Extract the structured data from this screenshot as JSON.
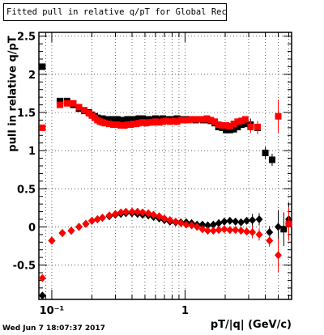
{
  "chart_data": {
    "type": "scatter",
    "title": "Fitted pull in relative q/pT for Global Rec All EtapT",
    "xlabel": "pT/|q| (GeV/c)",
    "ylabel": "pull in relative q/pT",
    "x_scale": "log",
    "xlim": [
      0.08,
      6.3
    ],
    "ylim": [
      -0.95,
      2.55
    ],
    "grid": true,
    "x_ticks": [
      {
        "value": 0.1,
        "label": "10⁻¹"
      },
      {
        "value": 1,
        "label": "1"
      }
    ],
    "y_ticks": [
      {
        "value": -0.5,
        "label": "-0.5"
      },
      {
        "value": 0,
        "label": "0"
      },
      {
        "value": 0.5,
        "label": "0.5"
      },
      {
        "value": 1,
        "label": "1"
      },
      {
        "value": 1.5,
        "label": "1.5"
      },
      {
        "value": 2,
        "label": "2"
      },
      {
        "value": 2.5,
        "label": "2.5"
      }
    ],
    "series": [
      {
        "color": "#000000",
        "marker": "square",
        "x": [
          0.085,
          0.115,
          0.13,
          0.145,
          0.16,
          0.175,
          0.19,
          0.2,
          0.21,
          0.22,
          0.23,
          0.24,
          0.25,
          0.27,
          0.29,
          0.31,
          0.33,
          0.35,
          0.37,
          0.39,
          0.41,
          0.43,
          0.45,
          0.48,
          0.51,
          0.54,
          0.57,
          0.6,
          0.64,
          0.68,
          0.72,
          0.77,
          0.82,
          0.87,
          0.93,
          0.99,
          1.06,
          1.13,
          1.2,
          1.28,
          1.37,
          1.46,
          1.56,
          1.67,
          1.78,
          1.9,
          2.03,
          2.17,
          2.32,
          2.48,
          2.65,
          2.83,
          3.1,
          3.5,
          4.0,
          4.5,
          5.5
        ],
        "y": [
          2.1,
          1.65,
          1.65,
          1.6,
          1.55,
          1.52,
          1.5,
          1.47,
          1.45,
          1.43,
          1.42,
          1.42,
          1.41,
          1.41,
          1.41,
          1.41,
          1.4,
          1.4,
          1.41,
          1.41,
          1.41,
          1.41,
          1.42,
          1.42,
          1.41,
          1.41,
          1.41,
          1.42,
          1.41,
          1.42,
          1.41,
          1.41,
          1.41,
          1.42,
          1.41,
          1.41,
          1.41,
          1.41,
          1.4,
          1.41,
          1.4,
          1.4,
          1.39,
          1.36,
          1.31,
          1.3,
          1.27,
          1.27,
          1.28,
          1.31,
          1.34,
          1.35,
          1.34,
          1.3,
          0.97,
          0.88,
          -0.03
        ]
      },
      {
        "color": "#000000",
        "marker": "diamond",
        "x": [
          0.085,
          0.1,
          0.12,
          0.14,
          0.16,
          0.18,
          0.2,
          0.22,
          0.24,
          0.27,
          0.3,
          0.33,
          0.36,
          0.4,
          0.44,
          0.48,
          0.53,
          0.58,
          0.64,
          0.7,
          0.77,
          0.85,
          0.93,
          1.02,
          1.12,
          1.23,
          1.35,
          1.48,
          1.63,
          1.79,
          1.97,
          2.17,
          2.39,
          2.63,
          2.9,
          3.2,
          3.6,
          4.3,
          5.0,
          6.0
        ],
        "y": [
          -0.9,
          -0.18,
          -0.08,
          -0.05,
          0.0,
          0.04,
          0.08,
          0.1,
          0.12,
          0.14,
          0.16,
          0.17,
          0.18,
          0.18,
          0.17,
          0.16,
          0.15,
          0.13,
          0.11,
          0.09,
          0.07,
          0.06,
          0.06,
          0.06,
          0.05,
          0.03,
          0.03,
          0.02,
          0.03,
          0.05,
          0.07,
          0.08,
          0.07,
          0.06,
          0.08,
          0.09,
          0.1,
          -0.07,
          0.0,
          0.1
        ]
      },
      {
        "color": "#ff0000",
        "marker": "square",
        "x": [
          0.085,
          0.115,
          0.13,
          0.145,
          0.16,
          0.175,
          0.19,
          0.2,
          0.21,
          0.22,
          0.23,
          0.24,
          0.25,
          0.27,
          0.29,
          0.31,
          0.33,
          0.35,
          0.37,
          0.39,
          0.41,
          0.43,
          0.45,
          0.48,
          0.51,
          0.54,
          0.57,
          0.6,
          0.64,
          0.68,
          0.72,
          0.77,
          0.82,
          0.87,
          0.93,
          0.99,
          1.06,
          1.13,
          1.2,
          1.28,
          1.37,
          1.46,
          1.56,
          1.67,
          1.78,
          1.9,
          2.03,
          2.17,
          2.32,
          2.48,
          2.65,
          2.83,
          3.1,
          3.5,
          5.0,
          6.0
        ],
        "y": [
          1.3,
          1.6,
          1.62,
          1.62,
          1.57,
          1.53,
          1.49,
          1.46,
          1.43,
          1.4,
          1.38,
          1.37,
          1.36,
          1.35,
          1.34,
          1.34,
          1.33,
          1.33,
          1.34,
          1.34,
          1.35,
          1.35,
          1.36,
          1.37,
          1.36,
          1.37,
          1.37,
          1.38,
          1.37,
          1.38,
          1.39,
          1.38,
          1.39,
          1.38,
          1.4,
          1.4,
          1.4,
          1.41,
          1.41,
          1.41,
          1.41,
          1.42,
          1.4,
          1.38,
          1.34,
          1.33,
          1.33,
          1.32,
          1.35,
          1.38,
          1.39,
          1.41,
          1.31,
          1.31,
          1.45,
          0.04
        ]
      },
      {
        "color": "#ff0000",
        "marker": "diamond",
        "x": [
          0.085,
          0.1,
          0.12,
          0.14,
          0.16,
          0.18,
          0.2,
          0.22,
          0.24,
          0.27,
          0.3,
          0.33,
          0.36,
          0.4,
          0.44,
          0.48,
          0.53,
          0.58,
          0.64,
          0.7,
          0.77,
          0.85,
          0.93,
          1.02,
          1.12,
          1.23,
          1.35,
          1.48,
          1.63,
          1.79,
          1.97,
          2.17,
          2.39,
          2.63,
          2.9,
          3.2,
          3.6,
          4.3,
          5.0,
          6.0
        ],
        "y": [
          -0.67,
          -0.18,
          -0.08,
          -0.05,
          0.0,
          0.04,
          0.08,
          0.1,
          0.12,
          0.15,
          0.17,
          0.19,
          0.2,
          0.2,
          0.2,
          0.19,
          0.18,
          0.16,
          0.14,
          0.11,
          0.09,
          0.07,
          0.05,
          0.03,
          0.02,
          0.0,
          -0.03,
          -0.05,
          -0.05,
          -0.04,
          -0.03,
          -0.04,
          -0.04,
          -0.05,
          -0.06,
          -0.07,
          -0.1,
          -0.18,
          -0.37,
          0.04
        ]
      }
    ]
  },
  "footer": {
    "timestamp": "Wed Jun  7 18:07:37 2017"
  }
}
